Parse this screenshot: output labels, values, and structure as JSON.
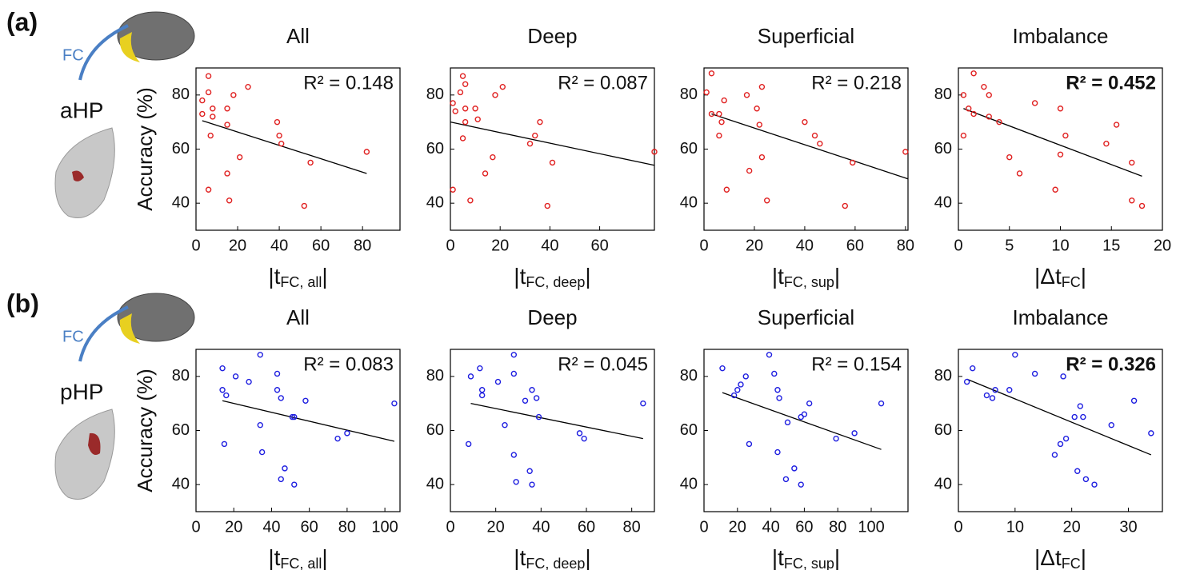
{
  "rows": [
    {
      "label": "(a)",
      "fc": "FC",
      "region": "aHP"
    },
    {
      "label": "(b)",
      "fc": "FC",
      "region": "pHP"
    }
  ],
  "chart_data": [
    {
      "type": "scatter",
      "title": "All",
      "annotation": "R² = 0.148",
      "annotation_bold": false,
      "ylabel": "Accuracy (%)",
      "xlabel_parts": [
        "|t",
        "FC, all",
        "|"
      ],
      "color": "#e02020",
      "x": [
        3,
        3,
        6,
        6,
        7,
        8,
        8,
        6,
        15,
        15,
        15,
        16,
        18,
        21,
        25,
        39,
        40,
        41,
        52,
        55,
        82
      ],
      "y": [
        78,
        73,
        87,
        81,
        65,
        75,
        72,
        45,
        75,
        69,
        51,
        41,
        80,
        57,
        83,
        70,
        65,
        62,
        39,
        55,
        59
      ],
      "fit_x": [
        3,
        82
      ],
      "fit_y": [
        70.5,
        51
      ],
      "xlim": [
        0,
        98
      ],
      "ylim": [
        30,
        90
      ],
      "xticks": [
        0,
        20,
        40,
        60,
        80
      ],
      "yticks": [
        40,
        60,
        80
      ]
    },
    {
      "type": "scatter",
      "title": "Deep",
      "annotation": "R² = 0.087",
      "annotation_bold": false,
      "xlabel_parts": [
        "|t",
        "FC, deep",
        "|"
      ],
      "color": "#e02020",
      "x": [
        1,
        1,
        2,
        4,
        5,
        5,
        6,
        6,
        6,
        8,
        10,
        11,
        14,
        17,
        18,
        21,
        32,
        34,
        36,
        39,
        41,
        82
      ],
      "y": [
        45,
        77,
        74,
        81,
        87,
        64,
        70,
        75,
        84,
        41,
        75,
        71,
        51,
        57,
        80,
        83,
        62,
        65,
        70,
        39,
        55,
        59
      ],
      "fit_x": [
        0,
        82
      ],
      "fit_y": [
        70,
        54
      ],
      "xlim": [
        0,
        82
      ],
      "ylim": [
        30,
        90
      ],
      "xticks": [
        0,
        20,
        40,
        60
      ],
      "yticks": [
        40,
        60,
        80
      ]
    },
    {
      "type": "scatter",
      "title": "Superficial",
      "annotation": "R² = 0.218",
      "annotation_bold": false,
      "xlabel_parts": [
        "|t",
        "FC, sup",
        "|"
      ],
      "color": "#e02020",
      "x": [
        1,
        3,
        3,
        6,
        6,
        7,
        8,
        9,
        17,
        18,
        21,
        22,
        23,
        23,
        25,
        40,
        44,
        46,
        56,
        59,
        80
      ],
      "y": [
        81,
        88,
        73,
        65,
        73,
        70,
        78,
        45,
        80,
        52,
        75,
        69,
        57,
        83,
        41,
        70,
        65,
        62,
        39,
        55,
        59
      ],
      "fit_x": [
        3,
        81
      ],
      "fit_y": [
        73,
        49
      ],
      "xlim": [
        0,
        81
      ],
      "ylim": [
        30,
        90
      ],
      "xticks": [
        0,
        20,
        40,
        60,
        80
      ],
      "yticks": [
        40,
        60,
        80
      ]
    },
    {
      "type": "scatter",
      "title": "Imbalance",
      "annotation": "R² = 0.452",
      "annotation_bold": true,
      "xlabel_parts": [
        "|Δt",
        "FC",
        "|"
      ],
      "color": "#e02020",
      "x": [
        0.5,
        0.5,
        1,
        1.5,
        1.5,
        2.5,
        3,
        3,
        4,
        7.5,
        5,
        6,
        9.5,
        10,
        10,
        10.5,
        14.5,
        15.5,
        17,
        17,
        18
      ],
      "y": [
        80,
        65,
        75,
        73,
        88,
        83,
        80,
        72,
        70,
        77,
        57,
        51,
        45,
        75,
        58,
        65,
        62,
        69,
        55,
        41,
        39
      ],
      "fit_x": [
        0.5,
        18
      ],
      "fit_y": [
        75,
        50
      ],
      "xlim": [
        0,
        20
      ],
      "ylim": [
        30,
        90
      ],
      "xticks": [
        0,
        5,
        10,
        15,
        20
      ],
      "yticks": [
        40,
        60,
        80
      ]
    },
    {
      "type": "scatter",
      "title": "All",
      "annotation": "R² = 0.083",
      "annotation_bold": false,
      "ylabel": "Accuracy (%)",
      "xlabel_parts": [
        "|t",
        "FC, all",
        "|"
      ],
      "color": "#1f1fe0",
      "x": [
        14,
        14,
        15,
        16,
        21,
        28,
        34,
        34,
        35,
        43,
        43,
        45,
        45,
        47,
        51,
        52,
        52,
        58,
        75,
        80,
        105
      ],
      "y": [
        83,
        75,
        55,
        73,
        80,
        78,
        88,
        62,
        52,
        81,
        75,
        72,
        42,
        46,
        65,
        40,
        65,
        71,
        57,
        59,
        70
      ],
      "fit_x": [
        14,
        105
      ],
      "fit_y": [
        71,
        56
      ],
      "xlim": [
        0,
        108
      ],
      "ylim": [
        30,
        90
      ],
      "xticks": [
        0,
        20,
        40,
        60,
        80,
        100
      ],
      "yticks": [
        40,
        60,
        80
      ]
    },
    {
      "type": "scatter",
      "title": "Deep",
      "annotation": "R² = 0.045",
      "annotation_bold": false,
      "xlabel_parts": [
        "|t",
        "FC, deep",
        "|"
      ],
      "color": "#1f1fe0",
      "x": [
        8,
        9,
        13,
        14,
        14,
        21,
        24,
        28,
        28,
        28,
        29,
        33,
        35,
        36,
        36,
        38,
        39,
        57,
        59,
        85
      ],
      "y": [
        55,
        80,
        83,
        75,
        73,
        78,
        62,
        81,
        88,
        51,
        41,
        71,
        45,
        40,
        75,
        72,
        65,
        59,
        57,
        70
      ],
      "fit_x": [
        9,
        85
      ],
      "fit_y": [
        70,
        57
      ],
      "xlim": [
        0,
        90
      ],
      "ylim": [
        30,
        90
      ],
      "xticks": [
        0,
        20,
        40,
        60,
        80
      ],
      "yticks": [
        40,
        60,
        80
      ]
    },
    {
      "type": "scatter",
      "title": "Superficial",
      "annotation": "R² = 0.154",
      "annotation_bold": false,
      "xlabel_parts": [
        "|t",
        "FC, sup",
        "|"
      ],
      "color": "#1f1fe0",
      "x": [
        11,
        18,
        20,
        22,
        25,
        27,
        39,
        42,
        44,
        45,
        44,
        49,
        50,
        54,
        58,
        58,
        60,
        63,
        79,
        90,
        106
      ],
      "y": [
        83,
        73,
        75,
        77,
        80,
        55,
        88,
        81,
        75,
        72,
        52,
        42,
        63,
        46,
        40,
        65,
        66,
        70,
        57,
        59,
        70
      ],
      "fit_x": [
        11,
        106
      ],
      "fit_y": [
        74,
        53
      ],
      "xlim": [
        0,
        122
      ],
      "ylim": [
        30,
        90
      ],
      "xticks": [
        0,
        20,
        40,
        60,
        80,
        100
      ],
      "yticks": [
        40,
        60,
        80
      ]
    },
    {
      "type": "scatter",
      "title": "Imbalance",
      "annotation": "R² = 0.326",
      "annotation_bold": true,
      "xlabel_parts": [
        "|Δt",
        "FC",
        "|"
      ],
      "color": "#1f1fe0",
      "x": [
        1.5,
        2.5,
        5,
        6,
        6.5,
        9,
        10,
        13.5,
        17,
        18,
        19,
        18.5,
        20.5,
        21,
        21.5,
        22,
        22.5,
        24,
        27,
        31,
        34
      ],
      "y": [
        78,
        83,
        73,
        72,
        75,
        75,
        88,
        81,
        51,
        55,
        57,
        80,
        65,
        45,
        69,
        65,
        42,
        40,
        62,
        71,
        59
      ],
      "fit_x": [
        1.5,
        34
      ],
      "fit_y": [
        79,
        51
      ],
      "xlim": [
        0,
        36
      ],
      "ylim": [
        30,
        90
      ],
      "xticks": [
        0,
        10,
        20,
        30
      ],
      "yticks": [
        40,
        60,
        80
      ]
    }
  ]
}
